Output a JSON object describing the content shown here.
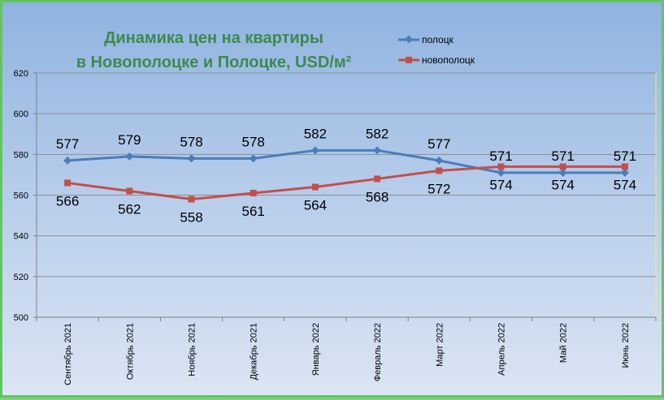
{
  "chart_data": {
    "type": "line",
    "title_lines": [
      "Динамика цен на квартиры",
      "в Новополоцке и Полоцке, USD/м²"
    ],
    "categories": [
      "Сентябрь 2021",
      "Октябрь 2021",
      "Ноябрь 2021",
      "Декабрь 2021",
      "Январь 2022",
      "Февраль 2022",
      "Март 2022",
      "Апрель 2022",
      "Май 2022",
      "Июнь 2022"
    ],
    "ylim": [
      500,
      620
    ],
    "yticks": [
      "500",
      "520",
      "540",
      "560",
      "580",
      "600",
      "620"
    ],
    "grid": "horizontal",
    "legend_position": "top-right",
    "series": [
      {
        "name": "полоцк",
        "color": "#4a7ebb",
        "marker": "diamond",
        "values": [
          577,
          579,
          578,
          578,
          582,
          582,
          577,
          571,
          571,
          571
        ],
        "labels": [
          "577",
          "579",
          "578",
          "578",
          "582",
          "582",
          "577",
          "571",
          "571",
          "571"
        ]
      },
      {
        "name": "новополоцк",
        "color": "#c0504d",
        "marker": "square",
        "values": [
          566,
          562,
          558,
          561,
          564,
          568,
          572,
          574,
          574,
          574
        ],
        "labels": [
          "566",
          "562",
          "558",
          "561",
          "564",
          "568",
          "572",
          "574",
          "574",
          "574"
        ]
      }
    ]
  }
}
